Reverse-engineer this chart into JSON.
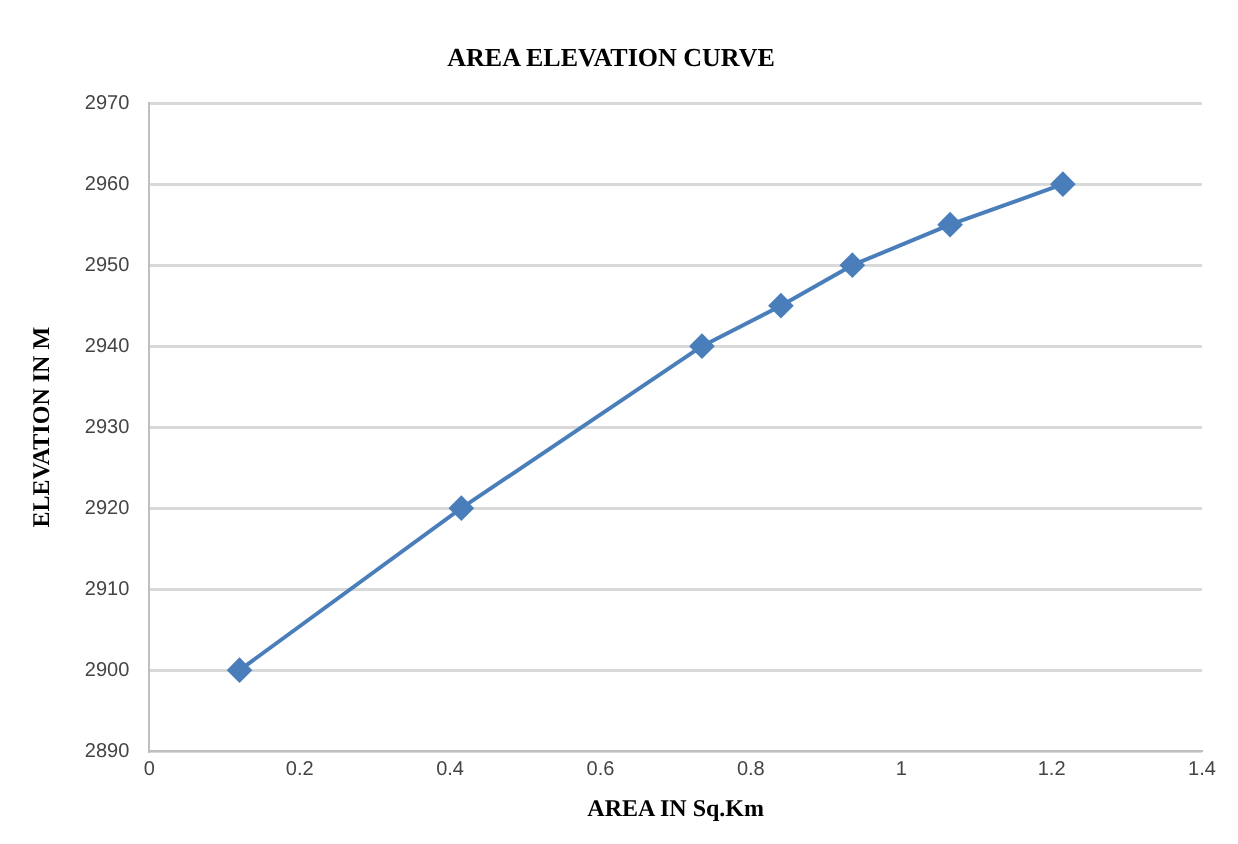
{
  "chart_data": {
    "type": "line",
    "title": "AREA ELEVATION CURVE",
    "xlabel": "AREA IN Sq.Km",
    "ylabel": "ELEVATION IN M",
    "x": [
      0.12,
      0.415,
      0.735,
      0.84,
      0.935,
      1.065,
      1.215
    ],
    "series": [
      {
        "color": "#4a7ebb",
        "values": [
          2900,
          2920,
          2940,
          2945,
          2950,
          2955,
          2960
        ]
      }
    ],
    "xlim": [
      0,
      1.4
    ],
    "xticks": [
      0,
      0.2,
      0.4,
      0.6,
      0.8,
      1,
      1.2,
      1.4
    ],
    "ylim": [
      2890,
      2970
    ],
    "yticks": [
      2890,
      2900,
      2910,
      2920,
      2930,
      2940,
      2950,
      2960,
      2970
    ],
    "grid": "y",
    "legend": false,
    "marker": "diamond",
    "line_style": "solid"
  }
}
